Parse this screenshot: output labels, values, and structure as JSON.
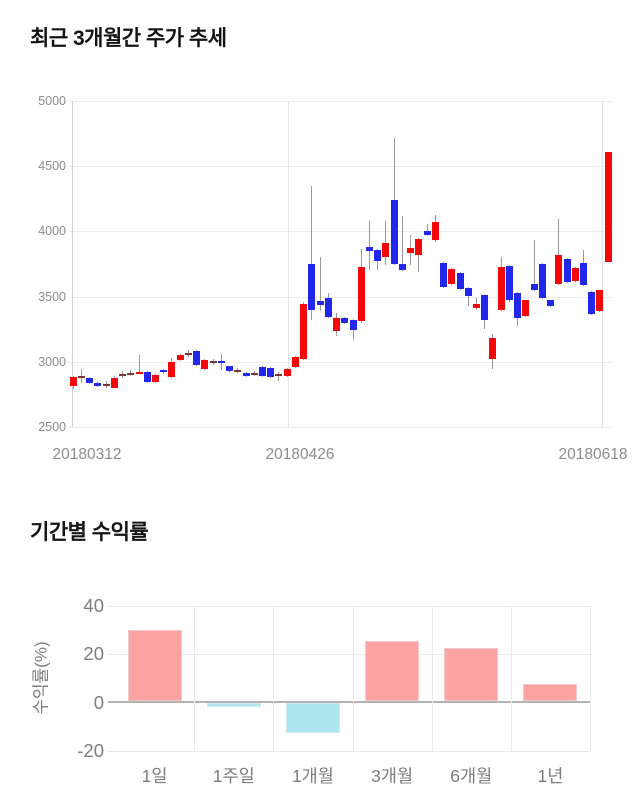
{
  "chart_data": [
    {
      "type": "candlestick",
      "title": "최근 3개월간 주가 추세",
      "ylim": [
        2500,
        5000
      ],
      "y_ticks": [
        5000,
        4500,
        4000,
        3500,
        3000,
        2500
      ],
      "x_tick_labels": [
        "20180312",
        "20180426",
        "20180618"
      ],
      "grid": true,
      "legend": "none",
      "colors": {
        "up": "#f50708",
        "down": "#2127ed",
        "doji": "#7b3535",
        "wick": "#999999"
      },
      "candles_note": "arrays are [open, high, low, close, kind] kind: u=up(red) d=down(blue) j=doji(dark red)",
      "candles": [
        [
          2815,
          2895,
          2795,
          2885,
          "u"
        ],
        [
          2882,
          2948,
          2843,
          2890,
          "j"
        ],
        [
          2880,
          2888,
          2832,
          2840,
          "d"
        ],
        [
          2838,
          2846,
          2810,
          2820,
          "d"
        ],
        [
          2826,
          2856,
          2800,
          2832,
          "j"
        ],
        [
          2805,
          2890,
          2798,
          2880,
          "u"
        ],
        [
          2898,
          2930,
          2880,
          2906,
          "j"
        ],
        [
          2910,
          2940,
          2892,
          2918,
          "j"
        ],
        [
          2916,
          3050,
          2908,
          2926,
          "u"
        ],
        [
          2922,
          2930,
          2840,
          2848,
          "d"
        ],
        [
          2848,
          2906,
          2840,
          2898,
          "u"
        ],
        [
          2940,
          2950,
          2912,
          2922,
          "d"
        ],
        [
          2886,
          3032,
          2880,
          3000,
          "u"
        ],
        [
          3013,
          3058,
          3005,
          3051,
          "u"
        ],
        [
          3058,
          3090,
          3035,
          3066,
          "j"
        ],
        [
          3084,
          3090,
          2968,
          2975,
          "d"
        ],
        [
          2949,
          3020,
          2942,
          3013,
          "u"
        ],
        [
          2996,
          3026,
          2976,
          3004,
          "j"
        ],
        [
          3006,
          3064,
          2936,
          2994,
          "d"
        ],
        [
          2967,
          2972,
          2924,
          2931,
          "d"
        ],
        [
          2928,
          2956,
          2914,
          2936,
          "j"
        ],
        [
          2916,
          2922,
          2884,
          2891,
          "d"
        ],
        [
          2906,
          2932,
          2894,
          2914,
          "j"
        ],
        [
          2964,
          2970,
          2888,
          2895,
          "d"
        ],
        [
          2956,
          2962,
          2880,
          2887,
          "d"
        ],
        [
          2902,
          2926,
          2856,
          2910,
          "j"
        ],
        [
          2890,
          2958,
          2884,
          2950,
          "u"
        ],
        [
          2964,
          3048,
          2956,
          3040,
          "u"
        ],
        [
          3023,
          3460,
          3015,
          3445,
          "u"
        ],
        [
          3752,
          4348,
          3322,
          3395,
          "d"
        ],
        [
          3466,
          3800,
          3390,
          3435,
          "d"
        ],
        [
          3486,
          3525,
          3338,
          3346,
          "d"
        ],
        [
          3234,
          3373,
          3196,
          3335,
          "u"
        ],
        [
          3335,
          3344,
          3290,
          3302,
          "d"
        ],
        [
          3320,
          3330,
          3172,
          3245,
          "d"
        ],
        [
          3310,
          3862,
          3300,
          3730,
          "u"
        ],
        [
          3881,
          4082,
          3702,
          3848,
          "d"
        ],
        [
          3856,
          3864,
          3700,
          3773,
          "d"
        ],
        [
          3806,
          4078,
          3742,
          3914,
          "u"
        ],
        [
          4242,
          4715,
          3740,
          3748,
          "d"
        ],
        [
          3748,
          4120,
          3698,
          3706,
          "d"
        ],
        [
          3831,
          3968,
          3744,
          3874,
          "u"
        ],
        [
          3818,
          3952,
          3692,
          3944,
          "u"
        ],
        [
          4000,
          4052,
          3960,
          3970,
          "d"
        ],
        [
          3932,
          4126,
          3920,
          4071,
          "u"
        ],
        [
          3754,
          3762,
          3568,
          3577,
          "d"
        ],
        [
          3597,
          3716,
          3590,
          3709,
          "u"
        ],
        [
          3684,
          3692,
          3548,
          3557,
          "d"
        ],
        [
          3565,
          3572,
          3425,
          3501,
          "d"
        ],
        [
          3410,
          3490,
          3400,
          3446,
          "u"
        ],
        [
          3509,
          3516,
          3254,
          3318,
          "d"
        ],
        [
          3020,
          3218,
          2948,
          3185,
          "u"
        ],
        [
          3400,
          3800,
          3392,
          3724,
          "u"
        ],
        [
          3734,
          3742,
          3462,
          3471,
          "d"
        ],
        [
          3527,
          3534,
          3272,
          3337,
          "d"
        ],
        [
          3354,
          3478,
          3346,
          3471,
          "u"
        ],
        [
          3597,
          3930,
          3544,
          3552,
          "d"
        ],
        [
          3749,
          3756,
          3480,
          3489,
          "d"
        ],
        [
          3471,
          3478,
          3418,
          3425,
          "d"
        ],
        [
          3597,
          4096,
          3590,
          3818,
          "u"
        ],
        [
          3785,
          3792,
          3606,
          3615,
          "d"
        ],
        [
          3623,
          3724,
          3615,
          3716,
          "u"
        ],
        [
          3759,
          3860,
          3582,
          3590,
          "d"
        ],
        [
          3532,
          3540,
          3362,
          3370,
          "d"
        ],
        [
          3388,
          3554,
          3380,
          3547,
          "u"
        ],
        [
          3767,
          4603,
          3767,
          4603,
          "u"
        ]
      ]
    },
    {
      "type": "bar",
      "title": "기간별 수익률",
      "ylabel": "수익률(%)",
      "categories": [
        "1일",
        "1주일",
        "1개월",
        "3개월",
        "6개월",
        "1년"
      ],
      "values": [
        30,
        -2,
        -12.5,
        25.5,
        22.5,
        7.5
      ],
      "ylim": [
        -20,
        40
      ],
      "y_ticks": [
        40,
        20,
        0,
        -20
      ],
      "grid": true,
      "legend": "none",
      "colors": {
        "positive": "#ffa2a2",
        "positive_border": "#eecaca",
        "negative": "#aee6ef",
        "negative_border": "#cfeaee",
        "zero_line": "#b3b3b3"
      }
    }
  ]
}
